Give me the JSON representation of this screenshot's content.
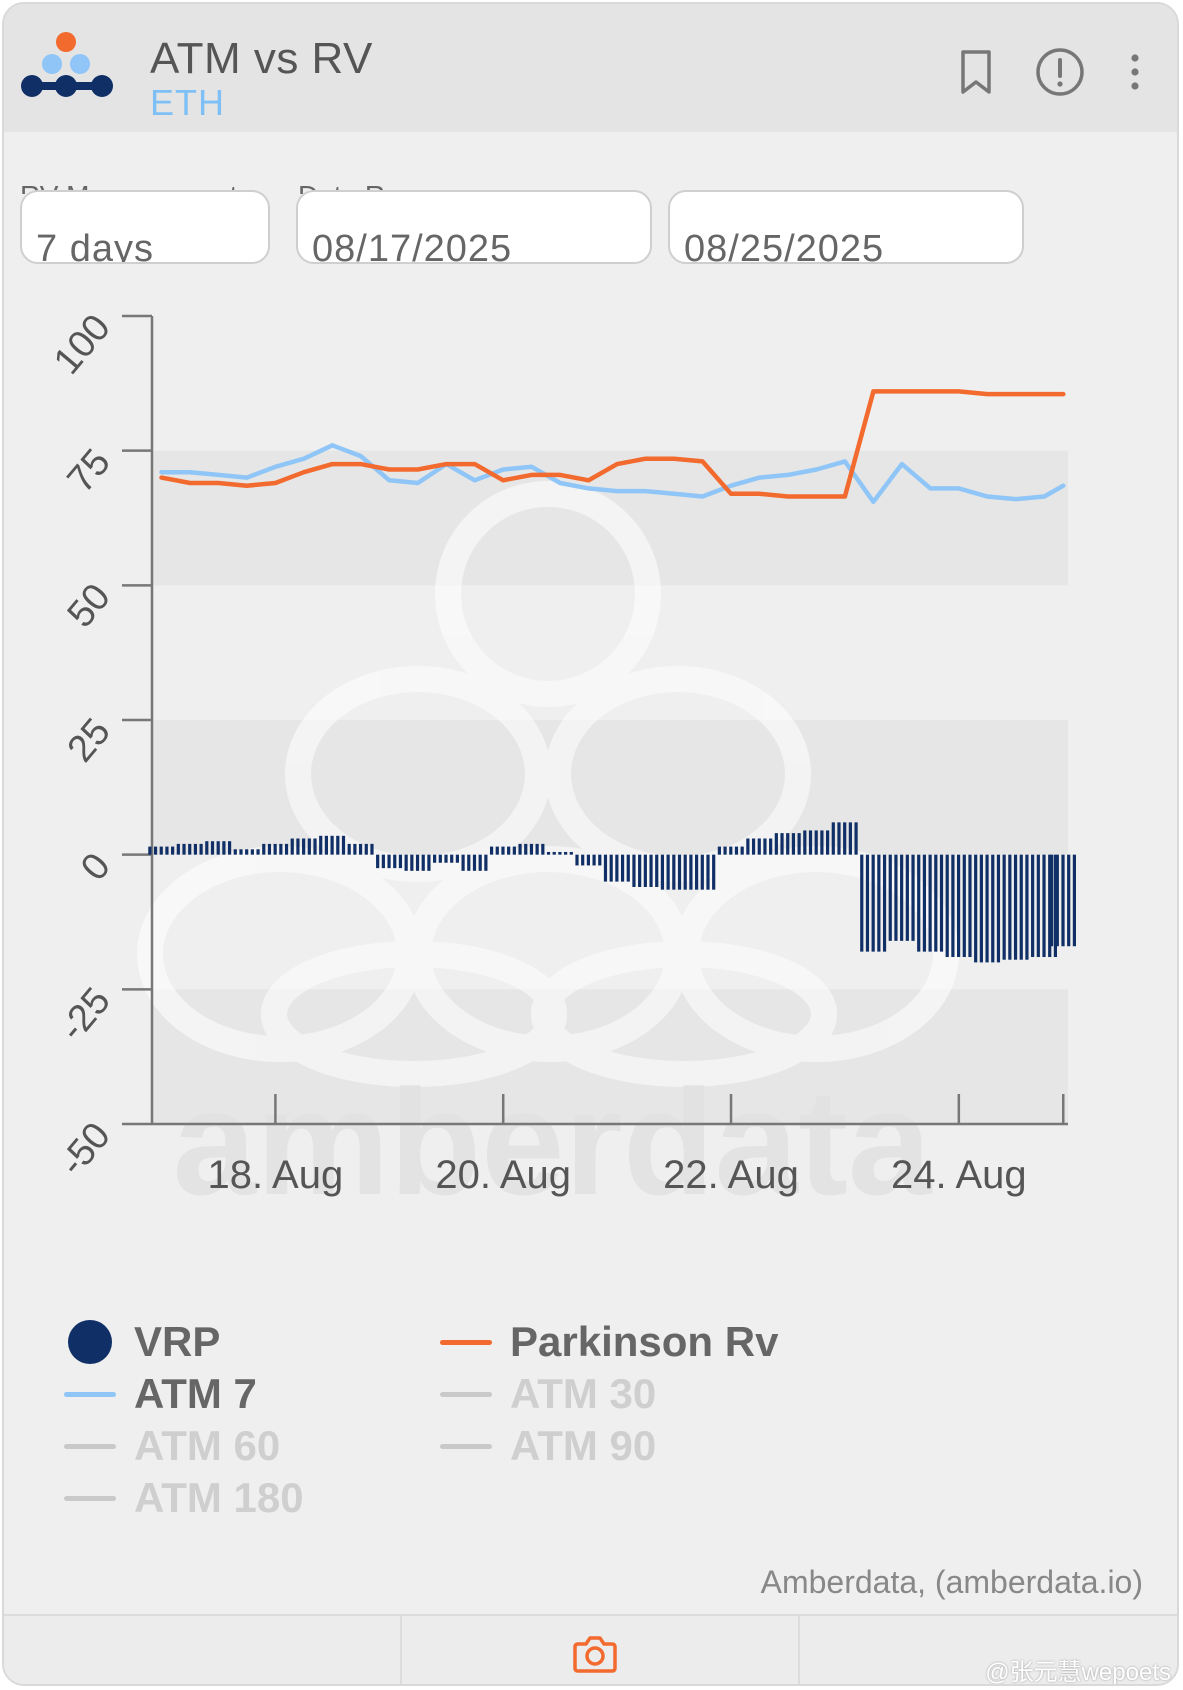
{
  "header": {
    "title": "ATM vs RV",
    "subtitle": "ETH"
  },
  "controls": {
    "rv_measurement_label": "RV Measurement",
    "rv_measurement_value": "7 days",
    "date_range_label": "Date Range",
    "start_date": "08/17/2025",
    "end_date": "08/25/2025"
  },
  "colors": {
    "vrp": "#0f2f66",
    "parkinson": "#f26a2e",
    "atm7": "#8fc6f7",
    "inactive": "#c9c9c9",
    "axis": "#777777"
  },
  "icons": [
    "bookmark-icon",
    "info-icon",
    "more-vert-icon",
    "camera-icon"
  ],
  "chart_data": {
    "type": "line",
    "xlabel": "",
    "ylabel": "",
    "ylim": [
      -50,
      100
    ],
    "yticks": [
      "100",
      "75",
      "50",
      "25",
      "0",
      "-25",
      "-50"
    ],
    "xticks": [
      "18. Aug",
      "20. Aug",
      "22. Aug",
      "24. Aug"
    ],
    "xlim": [
      "2025-08-16 22:00",
      "2025-08-24 23:00"
    ],
    "grid": "alternating bands",
    "x": [
      "08-17 00:00",
      "08-17 06:00",
      "08-17 12:00",
      "08-17 18:00",
      "08-18 00:00",
      "08-18 06:00",
      "08-18 12:00",
      "08-18 18:00",
      "08-19 00:00",
      "08-19 06:00",
      "08-19 12:00",
      "08-19 18:00",
      "08-20 00:00",
      "08-20 06:00",
      "08-20 12:00",
      "08-20 18:00",
      "08-21 00:00",
      "08-21 06:00",
      "08-21 12:00",
      "08-21 18:00",
      "08-22 00:00",
      "08-22 06:00",
      "08-22 12:00",
      "08-22 18:00",
      "08-23 00:00",
      "08-23 06:00",
      "08-23 12:00",
      "08-23 18:00",
      "08-24 00:00",
      "08-24 06:00",
      "08-24 12:00",
      "08-24 18:00",
      "08-24 22:00"
    ],
    "series": [
      {
        "name": "Parkinson Rv",
        "color": "#f26a2e",
        "visible": true,
        "values": [
          70,
          69,
          69,
          68.5,
          69,
          71,
          72.5,
          72.5,
          71.5,
          71.5,
          72.5,
          72.5,
          69.5,
          70.5,
          70.5,
          69.5,
          72.5,
          73.5,
          73.5,
          73,
          67,
          67,
          66.5,
          66.5,
          66.5,
          86,
          86,
          86,
          86,
          85.5,
          85.5,
          85.5,
          85.5
        ]
      },
      {
        "name": "ATM 7",
        "color": "#8fc6f7",
        "visible": true,
        "values": [
          71,
          71,
          70.5,
          70,
          72,
          73.5,
          76,
          74,
          69.5,
          69,
          72.5,
          69.5,
          71.5,
          72,
          69,
          68,
          67.5,
          67.5,
          67,
          66.5,
          68.5,
          70,
          70.5,
          71.5,
          73,
          65.5,
          72.5,
          68,
          68,
          66.5,
          66,
          66.5,
          68.5
        ]
      },
      {
        "name": "VRP",
        "color": "#0f2f66",
        "type": "column",
        "visible": true,
        "values": [
          1.5,
          2,
          2.5,
          1,
          2,
          3,
          3.5,
          2,
          -2.5,
          -3,
          -1.5,
          -3,
          1.5,
          2,
          0.5,
          -2,
          -5,
          -6,
          -6.5,
          -6.5,
          1.5,
          3,
          4,
          4.5,
          6,
          -18,
          -16,
          -18,
          -19,
          -20,
          -19.5,
          -19,
          -17
        ]
      },
      {
        "name": "ATM 30",
        "visible": false
      },
      {
        "name": "ATM 60",
        "visible": false
      },
      {
        "name": "ATM 90",
        "visible": false
      },
      {
        "name": "ATM 180",
        "visible": false
      }
    ]
  },
  "legend": [
    {
      "label": "VRP",
      "kind": "dot",
      "active": true
    },
    {
      "label": "Parkinson Rv",
      "kind": "line",
      "active": true
    },
    {
      "label": "ATM 7",
      "kind": "line",
      "active": true
    },
    {
      "label": "ATM 30",
      "kind": "line",
      "active": false
    },
    {
      "label": "ATM 60",
      "kind": "line",
      "active": false
    },
    {
      "label": "ATM 90",
      "kind": "line",
      "active": false
    },
    {
      "label": "ATM 180",
      "kind": "line",
      "active": false
    }
  ],
  "watermark": {
    "text": "amberdata"
  },
  "credits": "Amberdata, (amberdata.io)",
  "footer": {
    "user_watermark": "@张元慧wepoets"
  }
}
